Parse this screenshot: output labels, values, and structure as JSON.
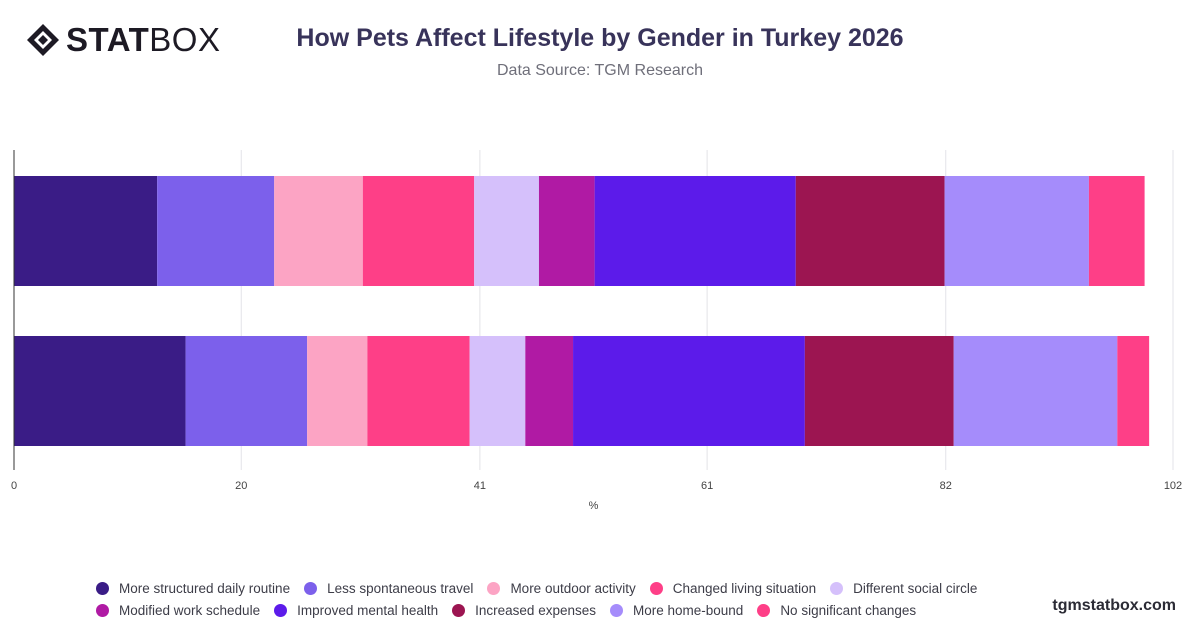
{
  "brand": {
    "logo_bold": "STAT",
    "logo_light": "BOX",
    "footer": "tgmstatbox.com"
  },
  "chart_data": {
    "type": "bar",
    "orientation": "horizontal",
    "stacked": true,
    "title": "How Pets Affect Lifestyle by Gender in Turkey 2026",
    "subtitle": "Data Source: TGM Research",
    "xlabel": "%",
    "ylabel": "",
    "xlim": [
      0,
      102
    ],
    "xticks": [
      "0",
      "20",
      "41",
      "61",
      "82",
      "102"
    ],
    "grid": true,
    "legend_position": "bottom",
    "categories": [
      "",
      ""
    ],
    "series": [
      {
        "name": "More structured daily routine",
        "color": "#3a1c86",
        "values": [
          12.6,
          15.1
        ]
      },
      {
        "name": "Less spontaneous travel",
        "color": "#7c60eb",
        "values": [
          10.3,
          10.7
        ]
      },
      {
        "name": "More outdoor activity",
        "color": "#fca4c4",
        "values": [
          7.8,
          5.3
        ]
      },
      {
        "name": "Changed living situation",
        "color": "#fe3f87",
        "values": [
          9.8,
          9.0
        ]
      },
      {
        "name": "Different social circle",
        "color": "#d5c0fb",
        "values": [
          5.7,
          4.9
        ]
      },
      {
        "name": "Modified work schedule",
        "color": "#b01aa4",
        "values": [
          4.9,
          4.2
        ]
      },
      {
        "name": "Improved mental health",
        "color": "#5c1bea",
        "values": [
          17.7,
          20.4
        ]
      },
      {
        "name": "Increased expenses",
        "color": "#9c1551",
        "values": [
          13.1,
          13.1
        ]
      },
      {
        "name": "More home-bound",
        "color": "#a58cfb",
        "values": [
          12.7,
          14.4
        ]
      },
      {
        "name": "No significant changes",
        "color": "#fe3f87",
        "values": [
          4.9,
          2.8
        ]
      }
    ]
  }
}
